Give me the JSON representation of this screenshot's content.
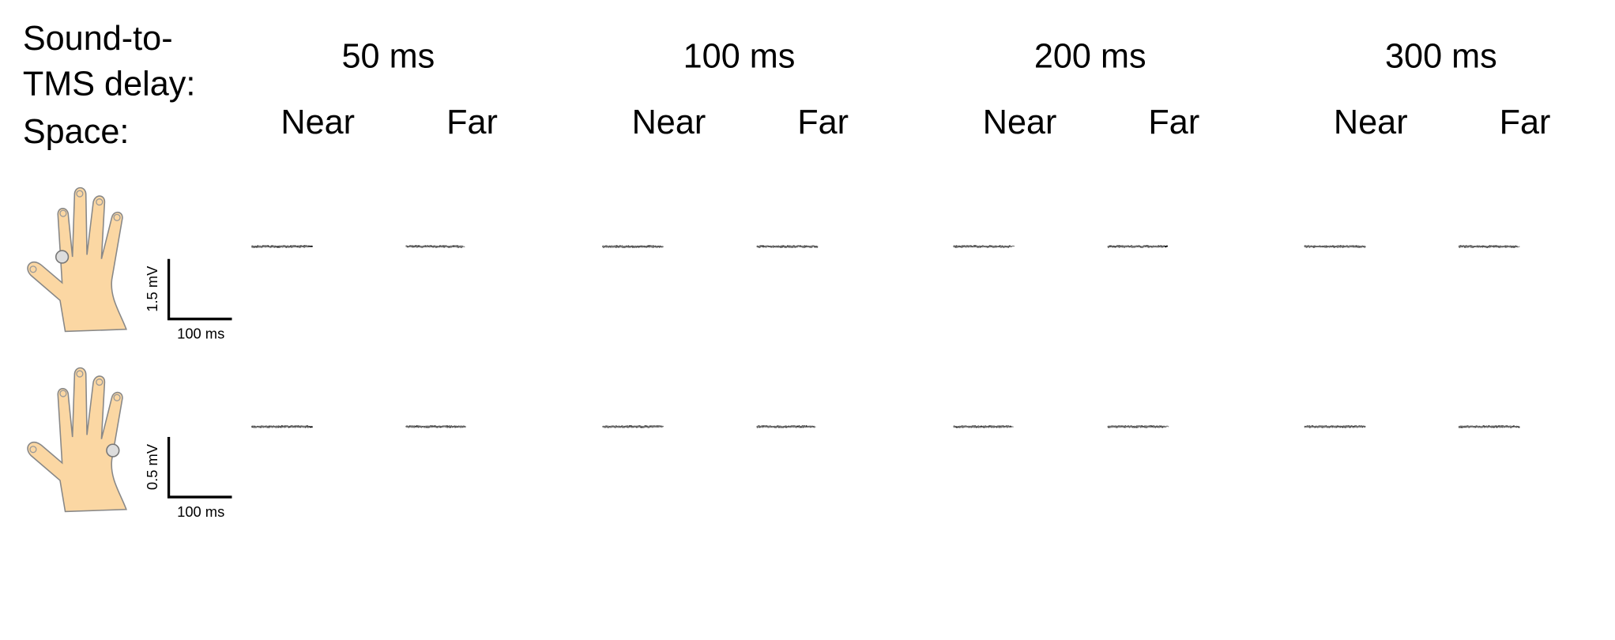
{
  "delay_label_lines": [
    "Sound-to-",
    "TMS delay:"
  ],
  "space_label": "Space:",
  "delays": [
    {
      "label": "50 ms",
      "spaces": [
        "Near",
        "Far"
      ]
    },
    {
      "label": "100 ms",
      "spaces": [
        "Near",
        "Far"
      ]
    },
    {
      "label": "200 ms",
      "spaces": [
        "Near",
        "Far"
      ]
    },
    {
      "label": "300 ms",
      "spaces": [
        "Near",
        "Far"
      ]
    }
  ],
  "rows": [
    {
      "scale_y": "1.5 mV",
      "scale_x": "100 ms"
    },
    {
      "scale_y": "0.5 mV",
      "scale_x": "100 ms"
    }
  ]
}
